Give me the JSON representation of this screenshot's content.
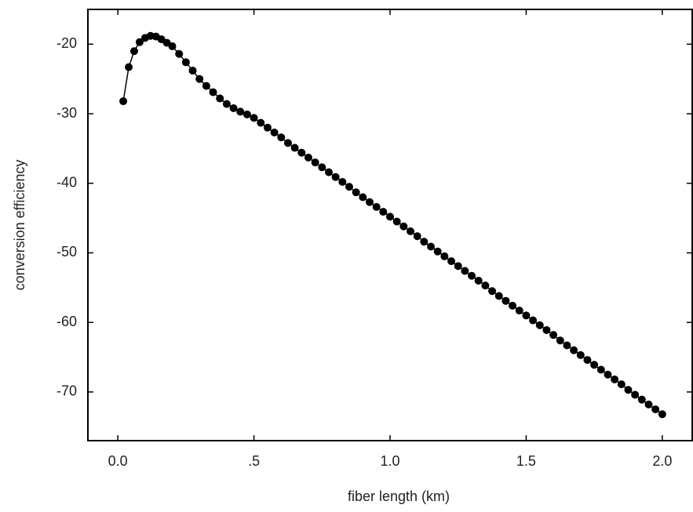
{
  "chart_data": {
    "type": "line",
    "x_label": "fiber length (km)",
    "y_label": "conversion efficiency",
    "xlim": [
      -0.11,
      2.11
    ],
    "ylim": [
      -77,
      -15
    ],
    "xticks": [
      {
        "value": 0,
        "label": "0.0"
      },
      {
        "value": 0.5,
        "label": ".5"
      },
      {
        "value": 1,
        "label": "1.0"
      },
      1.5,
      {
        "value": 2,
        "label": "2.0"
      }
    ],
    "yticks": [
      -20,
      -30,
      -40,
      -50,
      -60,
      -70
    ],
    "color": "#000000",
    "x": [
      0.02,
      0.04,
      0.06,
      0.08,
      0.1,
      0.12,
      0.14,
      0.16,
      0.18,
      0.2,
      0.225,
      0.25,
      0.275,
      0.3,
      0.325,
      0.35,
      0.375,
      0.4,
      0.425,
      0.45,
      0.475,
      0.5,
      0.525,
      0.55,
      0.575,
      0.6,
      0.625,
      0.65,
      0.675,
      0.7,
      0.725,
      0.75,
      0.775,
      0.8,
      0.825,
      0.85,
      0.875,
      0.9,
      0.925,
      0.95,
      0.975,
      1.0,
      1.025,
      1.05,
      1.075,
      1.1,
      1.125,
      1.15,
      1.175,
      1.2,
      1.225,
      1.25,
      1.275,
      1.3,
      1.325,
      1.35,
      1.375,
      1.4,
      1.425,
      1.45,
      1.475,
      1.5,
      1.525,
      1.55,
      1.575,
      1.6,
      1.625,
      1.65,
      1.675,
      1.7,
      1.725,
      1.75,
      1.775,
      1.8,
      1.825,
      1.85,
      1.875,
      1.9,
      1.925,
      1.95,
      1.975,
      2.0
    ],
    "values": [
      -28.2,
      -23.3,
      -21.0,
      -19.7,
      -19.1,
      -18.8,
      -18.9,
      -19.3,
      -19.8,
      -20.3,
      -21.4,
      -22.6,
      -23.8,
      -25.0,
      -26.0,
      -26.9,
      -27.8,
      -28.6,
      -29.2,
      -29.7,
      -30.1,
      -30.6,
      -31.3,
      -32.0,
      -32.7,
      -33.4,
      -34.2,
      -34.9,
      -35.6,
      -36.3,
      -37.0,
      -37.7,
      -38.4,
      -39.1,
      -39.8,
      -40.5,
      -41.3,
      -42.0,
      -42.7,
      -43.4,
      -44.1,
      -44.8,
      -45.5,
      -46.2,
      -46.9,
      -47.6,
      -48.4,
      -49.1,
      -49.8,
      -50.5,
      -51.2,
      -51.9,
      -52.6,
      -53.3,
      -54.0,
      -54.7,
      -55.5,
      -56.2,
      -56.9,
      -57.6,
      -58.3,
      -59.0,
      -59.7,
      -60.4,
      -61.1,
      -61.8,
      -62.6,
      -63.3,
      -64.0,
      -64.7,
      -65.4,
      -66.1,
      -66.8,
      -67.5,
      -68.2,
      -68.9,
      -69.7,
      -70.4,
      -71.1,
      -71.8,
      -72.5,
      -73.2
    ]
  }
}
